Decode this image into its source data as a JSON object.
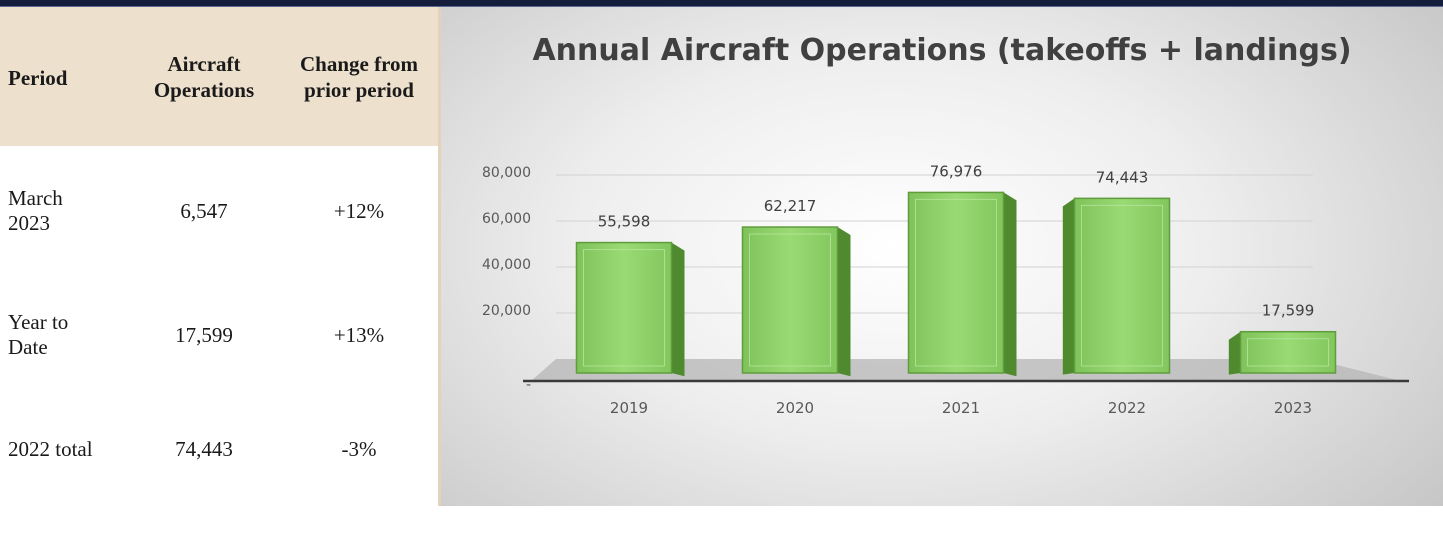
{
  "table": {
    "headers": {
      "period": "Period",
      "ops_line1": "Aircraft",
      "ops_line2": "Operations",
      "change_line1": "Change from",
      "change_line2": "prior period"
    },
    "rows": [
      {
        "period_line1": "March",
        "period_line2": "2023",
        "ops": "6,547",
        "change": "+12%"
      },
      {
        "period_line1": "Year to",
        "period_line2": "Date",
        "ops": "17,599",
        "change": "+13%"
      },
      {
        "period_line1": "2022 total",
        "period_line2": "",
        "ops": "74,443",
        "change": "-3%"
      }
    ]
  },
  "chart_data": {
    "type": "bar",
    "title": "Annual Aircraft Operations (takeoffs + landings)",
    "categories": [
      "2019",
      "2020",
      "2021",
      "2022",
      "2023"
    ],
    "values": [
      55598,
      62217,
      76976,
      74443,
      17599
    ],
    "data_labels": [
      "55,598",
      "62,217",
      "76,976",
      "74,443",
      "17,599"
    ],
    "y_ticks": [
      "-",
      "20,000",
      "40,000",
      "60,000",
      "80,000"
    ],
    "y_tick_values": [
      0,
      20000,
      40000,
      60000,
      80000
    ],
    "ylim": [
      0,
      80000
    ],
    "grid": true,
    "bar_color": "#8fd16a",
    "bar_dark": "#4f8a2e"
  }
}
